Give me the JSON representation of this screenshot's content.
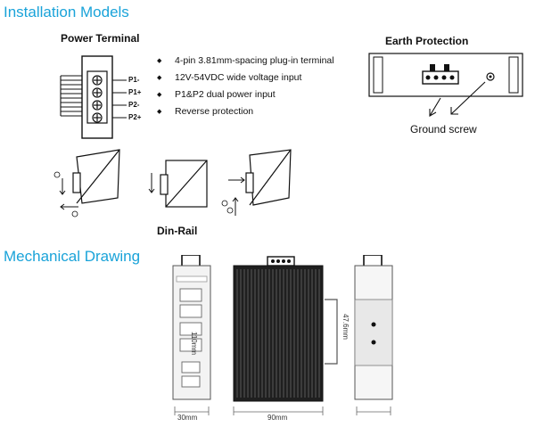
{
  "sections": {
    "installation_title": "Installation Models",
    "mechanical_title": "Mechanical Drawing"
  },
  "power_terminal": {
    "title": "Power Terminal",
    "pins": [
      "P1-",
      "P1+",
      "P2-",
      "P2+"
    ],
    "features": [
      "4-pin 3.81mm-spacing plug-in terminal",
      "12V-54VDC wide voltage input",
      "P1&P2 dual power input",
      "Reverse protection"
    ]
  },
  "earth_protection": {
    "title": "Earth Protection",
    "caption": "Ground screw"
  },
  "din_rail": {
    "caption": "Din-Rail",
    "step_markers": [
      "1",
      "2"
    ]
  },
  "mechanical": {
    "width_label": "30mm",
    "depth_label": "90mm",
    "height_label": "110mm",
    "rail_label": "47.6mm"
  },
  "colors": {
    "accent": "#1aa3d9"
  }
}
